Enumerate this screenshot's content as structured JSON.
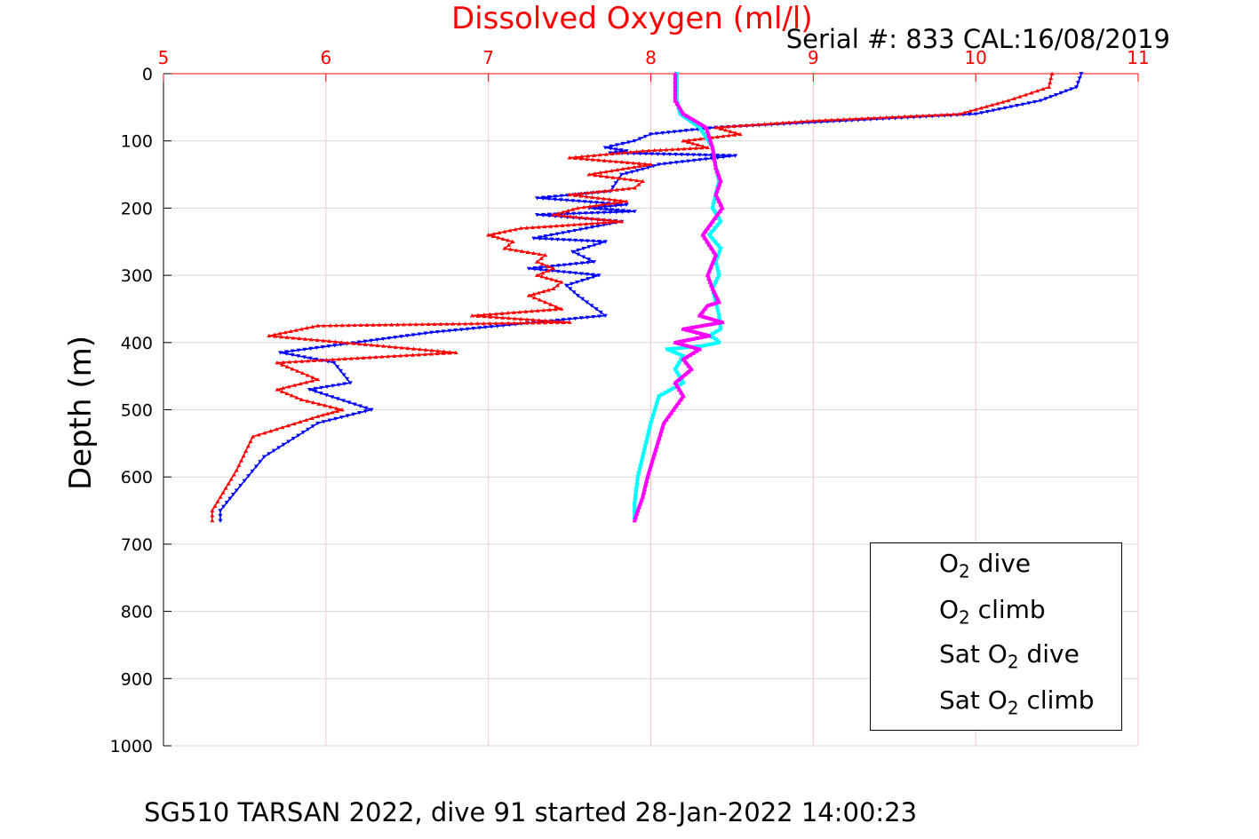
{
  "texts": {
    "title": "Dissolved Oxygen (ml/l)",
    "serial": "Serial #: 833  CAL:16/08/2019",
    "footer": "SG510 TARSAN 2022, dive 91 started 28-Jan-2022 14:00:23",
    "ylabel": "Depth (m)"
  },
  "legend": [
    {
      "pre": "O",
      "sub": "2",
      "post": " dive",
      "color": "#0000ff",
      "marker": "down"
    },
    {
      "pre": "O",
      "sub": "2",
      "post": " climb",
      "color": "#ff0000",
      "marker": "up"
    },
    {
      "pre": "Sat O",
      "sub": "2",
      "post": " dive",
      "color": "#00ffff",
      "marker": "down"
    },
    {
      "pre": "Sat O",
      "sub": "2",
      "post": " climb",
      "color": "#ff00ff",
      "marker": "up"
    }
  ],
  "chart_data": {
    "type": "line",
    "title": "Dissolved Oxygen (ml/l)",
    "xlabel": "",
    "ylabel": "Depth (m)",
    "xlim": [
      5,
      11
    ],
    "ylim": [
      0,
      1000
    ],
    "y_reversed": true,
    "x_axis_position": "top",
    "xticks": [
      5,
      6,
      7,
      8,
      9,
      10,
      11
    ],
    "yticks": [
      0,
      100,
      200,
      300,
      400,
      500,
      600,
      700,
      800,
      900,
      1000
    ],
    "tick_color_x": "#ff0000",
    "tick_color_y": "#000000",
    "grid": true,
    "legend_position": "bottom-right",
    "series": [
      {
        "name": "O2 dive",
        "color": "#0000ff",
        "marker": "down",
        "x": [
          10.65,
          10.62,
          10.4,
          10.0,
          9.2,
          8.4,
          8.0,
          7.9,
          7.72,
          7.85,
          7.75,
          8.52,
          8.05,
          7.95,
          7.82,
          7.75,
          7.3,
          7.85,
          7.62,
          7.9,
          7.3,
          7.82,
          7.28,
          7.72,
          7.52,
          7.65,
          7.25,
          7.68,
          7.48,
          7.55,
          7.72,
          6.65,
          5.72,
          6.05,
          6.15,
          5.9,
          6.28,
          5.95,
          5.62,
          5.45,
          5.35,
          5.35
        ],
        "y": [
          0,
          20,
          40,
          60,
          70,
          80,
          90,
          100,
          110,
          115,
          118,
          122,
          135,
          142,
          150,
          175,
          185,
          195,
          200,
          205,
          210,
          220,
          245,
          250,
          265,
          280,
          290,
          300,
          315,
          330,
          360,
          385,
          415,
          430,
          460,
          470,
          500,
          520,
          570,
          620,
          650,
          665
        ]
      },
      {
        "name": "O2 climb",
        "color": "#ff0000",
        "marker": "up",
        "x": [
          10.47,
          10.45,
          10.2,
          9.9,
          9.0,
          8.4,
          8.55,
          8.2,
          8.35,
          7.95,
          7.5,
          8.0,
          7.62,
          7.95,
          7.9,
          7.5,
          7.85,
          7.55,
          7.4,
          7.82,
          7.2,
          7.0,
          7.15,
          7.1,
          7.35,
          7.3,
          7.4,
          7.3,
          7.45,
          7.4,
          7.25,
          7.35,
          7.45,
          6.9,
          7.5,
          5.95,
          5.65,
          6.8,
          5.7,
          5.95,
          5.7,
          5.85,
          6.1,
          5.95,
          5.55,
          5.45,
          5.35,
          5.3,
          5.3
        ],
        "y": [
          0,
          20,
          40,
          60,
          70,
          80,
          90,
          100,
          110,
          115,
          125,
          135,
          150,
          160,
          170,
          180,
          190,
          200,
          210,
          220,
          230,
          240,
          250,
          260,
          270,
          280,
          290,
          300,
          310,
          320,
          330,
          340,
          350,
          360,
          370,
          375,
          390,
          415,
          430,
          455,
          470,
          485,
          500,
          510,
          540,
          590,
          630,
          650,
          665
        ]
      },
      {
        "name": "Sat O2 dive",
        "color": "#00ffff",
        "marker": "down",
        "x": [
          8.16,
          8.16,
          8.18,
          8.3,
          8.38,
          8.4,
          8.42,
          8.4,
          8.38,
          8.43,
          8.36,
          8.43,
          8.4,
          8.42,
          8.38,
          8.4,
          8.42,
          8.43,
          8.36,
          8.4,
          8.42,
          8.32,
          8.1,
          8.2,
          8.15,
          8.2,
          8.05,
          8.0,
          7.96,
          7.92,
          7.9,
          7.9
        ],
        "y": [
          0,
          40,
          60,
          80,
          110,
          140,
          160,
          180,
          200,
          220,
          240,
          260,
          280,
          300,
          320,
          340,
          360,
          380,
          390,
          395,
          400,
          405,
          410,
          420,
          440,
          460,
          480,
          520,
          560,
          600,
          640,
          665
        ]
      },
      {
        "name": "Sat O2 climb",
        "color": "#ff00ff",
        "marker": "up",
        "x": [
          8.15,
          8.15,
          8.2,
          8.34,
          8.38,
          8.4,
          8.43,
          8.4,
          8.44,
          8.32,
          8.4,
          8.35,
          8.38,
          8.42,
          8.35,
          8.3,
          8.44,
          8.2,
          8.36,
          8.15,
          8.3,
          8.2,
          8.25,
          8.15,
          8.2,
          8.08,
          8.03,
          7.98,
          7.95,
          7.92,
          7.9
        ],
        "y": [
          0,
          40,
          60,
          80,
          110,
          140,
          160,
          180,
          200,
          240,
          270,
          300,
          320,
          340,
          345,
          360,
          370,
          380,
          390,
          400,
          410,
          425,
          440,
          460,
          480,
          520,
          560,
          600,
          630,
          650,
          665
        ]
      }
    ]
  }
}
